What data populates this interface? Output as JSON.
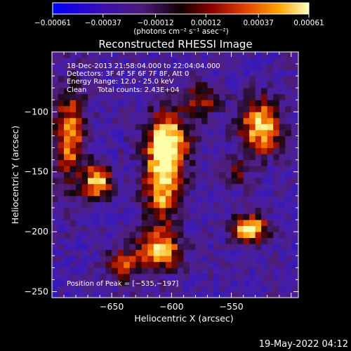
{
  "chart_data": {
    "type": "heatmap",
    "title": "Reconstructed RHESSI Image",
    "xlabel": "Heliocentric X (arcsec)",
    "ylabel": "Heliocentric Y (arcsec)",
    "xlim": [
      -700,
      -494
    ],
    "ylim": [
      -255,
      -50
    ],
    "x_ticks": [
      {
        "value": -650,
        "label": "−650"
      },
      {
        "value": -600,
        "label": "−600"
      },
      {
        "value": -550,
        "label": "−550"
      }
    ],
    "y_ticks": [
      {
        "value": -100,
        "label": "−100"
      },
      {
        "value": -150,
        "label": "−150"
      },
      {
        "value": -200,
        "label": "−200"
      },
      {
        "value": -250,
        "label": "−250"
      }
    ],
    "colorbar": {
      "range": [
        -0.00061,
        0.00061
      ],
      "tick_values": [
        -0.00061,
        -0.00037,
        -0.00012,
        0.00012,
        0.00037,
        0.00061
      ],
      "tick_labels": [
        "−0.00061",
        "−0.00037",
        "−0.00012",
        "0.00012",
        "0.00037",
        "0.00061"
      ],
      "units_label": "(photons cm⁻² s⁻¹ asec⁻²)"
    },
    "annotations": [
      "18-Dec-2013 21:58:04.000 to 22:04:04.000",
      "Detectors: 3F 4F 5F 6F 7F 8F, Att 0",
      "Energy Range: 12.0 - 25.0 keV",
      "Clean     Total counts: 2.43E+04"
    ],
    "peak_label": "Position of Peak = [−535,−197]",
    "peak": [
      -535,
      -197
    ],
    "grid": false,
    "hotspots": [
      {
        "x": -603,
        "y": -125,
        "sx": 12,
        "sy": 18,
        "amp": 1.0
      },
      {
        "x": -608,
        "y": -162,
        "sx": 10,
        "sy": 22,
        "amp": 0.85
      },
      {
        "x": -662,
        "y": -158,
        "sx": 8,
        "sy": 10,
        "amp": 0.95
      },
      {
        "x": -685,
        "y": -120,
        "sx": 9,
        "sy": 28,
        "amp": 0.75
      },
      {
        "x": -525,
        "y": -112,
        "sx": 12,
        "sy": 16,
        "amp": 0.95
      },
      {
        "x": -535,
        "y": -197,
        "sx": 10,
        "sy": 8,
        "amp": 1.0
      },
      {
        "x": -610,
        "y": -215,
        "sx": 13,
        "sy": 12,
        "amp": 0.8
      },
      {
        "x": -640,
        "y": -228,
        "sx": 10,
        "sy": 10,
        "amp": 0.55
      },
      {
        "x": -575,
        "y": -90,
        "sx": 10,
        "sy": 10,
        "amp": 0.5
      },
      {
        "x": -545,
        "y": -150,
        "sx": 8,
        "sy": 8,
        "amp": 0.35
      }
    ]
  },
  "footer_date": "19-May-2022 04:12"
}
